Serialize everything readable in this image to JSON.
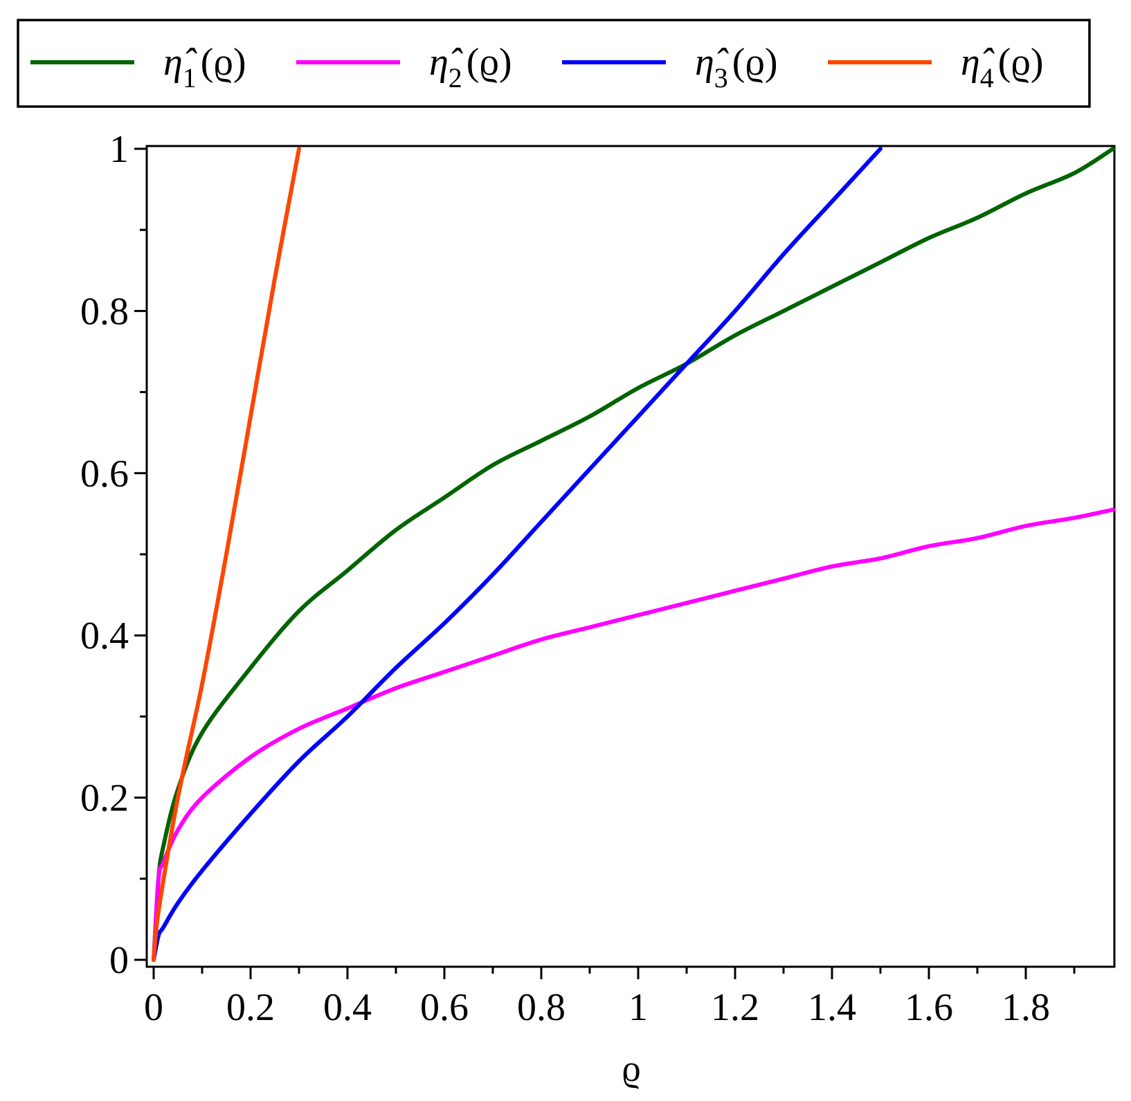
{
  "chart_data": {
    "type": "line",
    "title": "",
    "xlabel": "ϱ",
    "ylabel": "",
    "xlim": [
      0,
      1.98
    ],
    "ylim": [
      0,
      1
    ],
    "x_ticks": [
      "0",
      "0.2",
      "0.4",
      "0.6",
      "0.8",
      "1",
      "1.2",
      "1.4",
      "1.6",
      "1.8"
    ],
    "y_ticks": [
      "0",
      "0.2",
      "0.4",
      "0.6",
      "0.8",
      "1"
    ],
    "grid": false,
    "legend_position": "top",
    "series": [
      {
        "name": "η̂1(ϱ)",
        "name_main": "η̂",
        "name_sub": "1",
        "name_arg": "(ϱ)",
        "color": "#006400",
        "x": [
          0,
          0.01,
          0.02,
          0.05,
          0.1,
          0.2,
          0.3,
          0.4,
          0.5,
          0.6,
          0.7,
          0.8,
          0.9,
          1.0,
          1.1,
          1.2,
          1.3,
          1.4,
          1.5,
          1.6,
          1.7,
          1.8,
          1.9,
          1.98
        ],
        "y": [
          0,
          0.1,
          0.14,
          0.21,
          0.28,
          0.36,
          0.43,
          0.48,
          0.53,
          0.57,
          0.61,
          0.64,
          0.67,
          0.705,
          0.735,
          0.77,
          0.8,
          0.83,
          0.86,
          0.89,
          0.915,
          0.945,
          0.97,
          1.0
        ]
      },
      {
        "name": "η̂2(ϱ)",
        "name_main": "η̂",
        "name_sub": "2",
        "name_arg": "(ϱ)",
        "color": "#ff00ff",
        "x": [
          0,
          0.01,
          0.02,
          0.05,
          0.1,
          0.2,
          0.3,
          0.4,
          0.5,
          0.6,
          0.7,
          0.8,
          0.9,
          1.0,
          1.1,
          1.2,
          1.3,
          1.4,
          1.5,
          1.6,
          1.7,
          1.8,
          1.9,
          1.98
        ],
        "y": [
          0,
          0.1,
          0.12,
          0.16,
          0.2,
          0.25,
          0.285,
          0.31,
          0.335,
          0.355,
          0.375,
          0.395,
          0.41,
          0.425,
          0.44,
          0.455,
          0.47,
          0.485,
          0.495,
          0.51,
          0.52,
          0.535,
          0.545,
          0.555
        ]
      },
      {
        "name": "η̂3(ϱ)",
        "name_main": "η̂",
        "name_sub": "3",
        "name_arg": "(ϱ)",
        "color": "#0000ff",
        "x": [
          0,
          0.01,
          0.02,
          0.05,
          0.1,
          0.2,
          0.3,
          0.4,
          0.5,
          0.6,
          0.7,
          0.8,
          0.9,
          1.0,
          1.1,
          1.2,
          1.3,
          1.4,
          1.5
        ],
        "y": [
          0,
          0.03,
          0.04,
          0.07,
          0.11,
          0.18,
          0.245,
          0.3,
          0.36,
          0.415,
          0.475,
          0.54,
          0.605,
          0.67,
          0.735,
          0.8,
          0.87,
          0.935,
          1.0
        ]
      },
      {
        "name": "η̂4(ϱ)",
        "name_main": "η̂",
        "name_sub": "4",
        "name_arg": "(ϱ)",
        "color": "#ff4500",
        "x": [
          0,
          0.01,
          0.05,
          0.1,
          0.15,
          0.2,
          0.25,
          0.3
        ],
        "y": [
          0,
          0.06,
          0.2,
          0.34,
          0.5,
          0.67,
          0.84,
          1.0
        ]
      }
    ]
  }
}
